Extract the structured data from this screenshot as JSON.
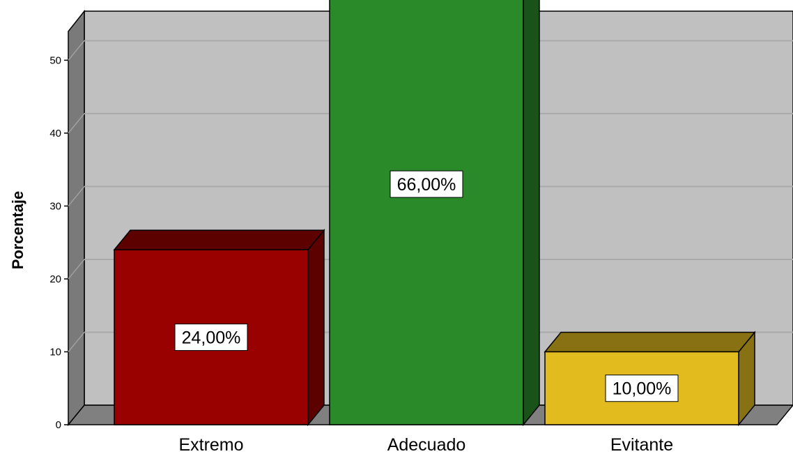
{
  "chart_data": {
    "type": "bar",
    "style": "3d",
    "categories": [
      "Extremo",
      "Adecuado",
      "Evitante"
    ],
    "values": [
      24,
      66,
      10
    ],
    "data_labels": [
      "24,00%",
      "66,00%",
      "10,00%"
    ],
    "colors": [
      "#990000",
      "#2a8a2a",
      "#e2bc1e"
    ],
    "ylabel": "Porcentaje",
    "yticks": [
      "0",
      "10",
      "20",
      "30",
      "40",
      "50"
    ],
    "ylim": [
      0,
      53
    ],
    "grid": true,
    "background": "#c0c0c0"
  }
}
